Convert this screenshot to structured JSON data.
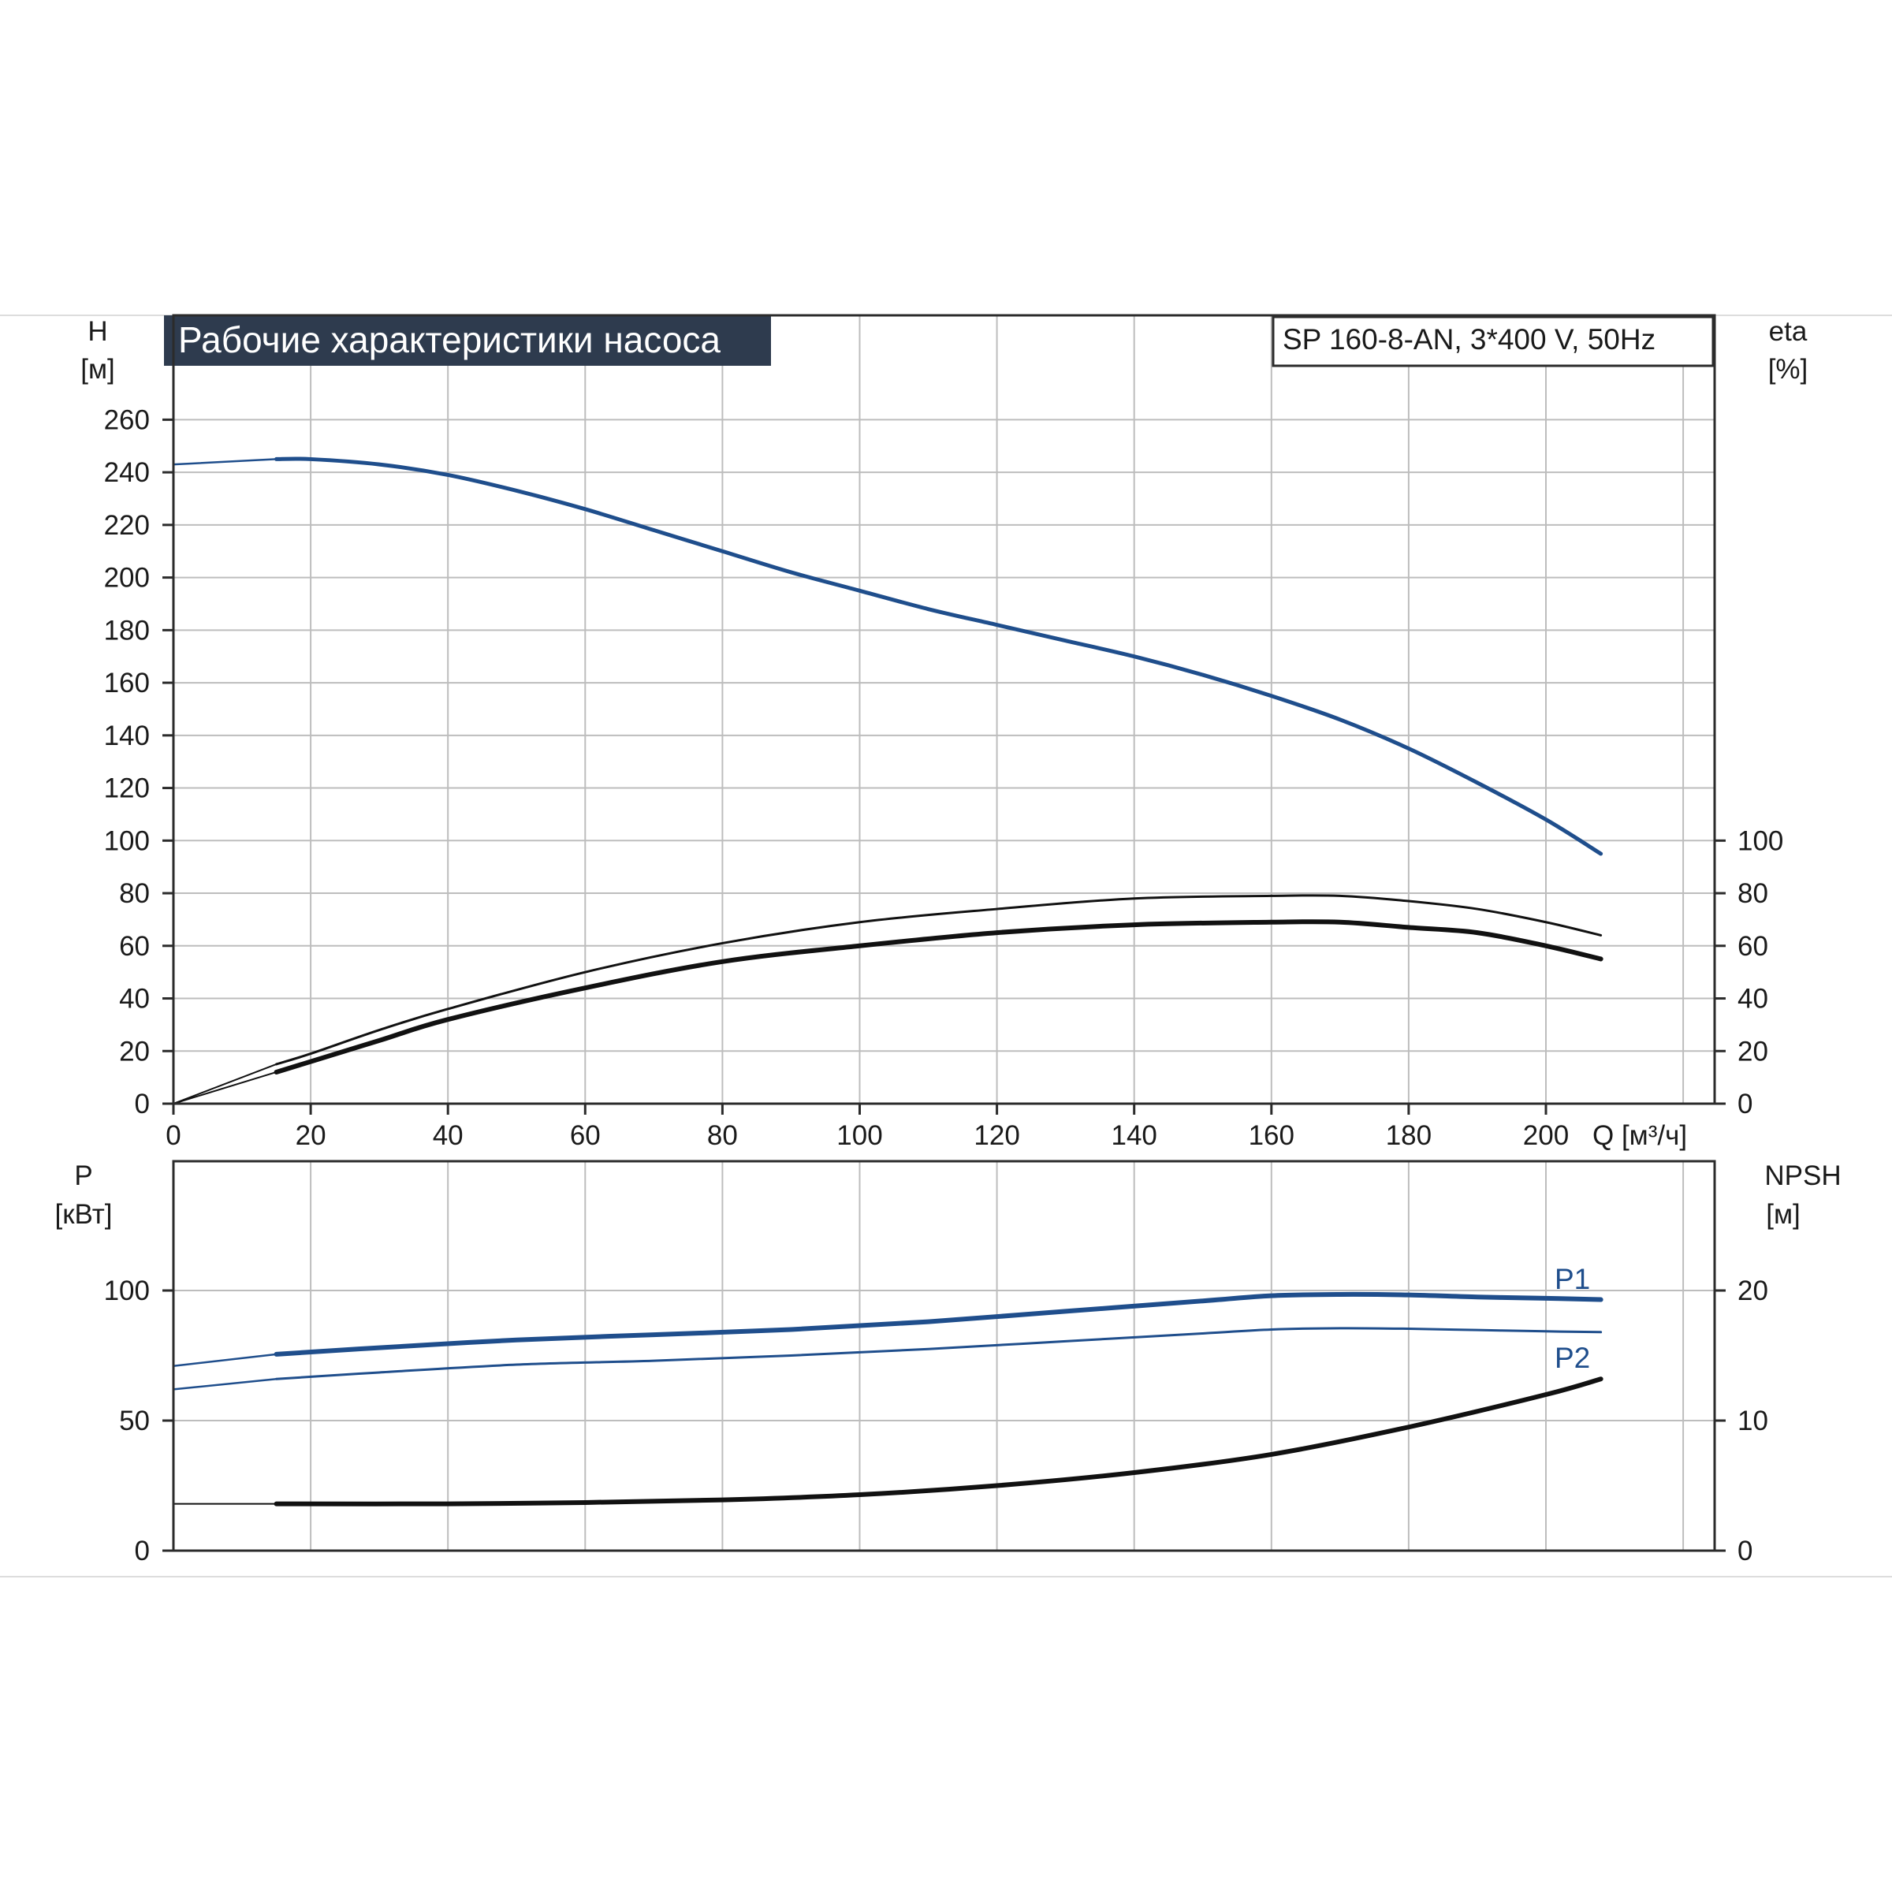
{
  "colors": {
    "blue": "#1f4e8c",
    "black": "#111111",
    "grid": "#bdbdbd",
    "title_bg": "#2e3b4e",
    "title_text": "#ffffff"
  },
  "header": {
    "title": "Рабочие характеристики насоса",
    "model": "SP 160-8-AN, 3*400 V, 50Hz"
  },
  "chart_data": [
    {
      "type": "line",
      "panel": "upper",
      "x_axis": {
        "label": "Q [м³/ч]",
        "range": [
          0,
          230
        ],
        "ticks": [
          0,
          20,
          40,
          60,
          80,
          100,
          120,
          140,
          160,
          180,
          200
        ]
      },
      "y_axis_left": {
        "label_line1": "H",
        "label_line2": "[м]",
        "range": [
          0,
          260
        ],
        "ticks": [
          0,
          20,
          40,
          60,
          80,
          100,
          120,
          140,
          160,
          180,
          200,
          220,
          240,
          260
        ]
      },
      "y_axis_right": {
        "label_line1": "eta",
        "label_line2": "[%]",
        "range": [
          0,
          260
        ],
        "ticks": [
          0,
          20,
          40,
          60,
          80,
          100
        ]
      },
      "grid": true,
      "series": [
        {
          "key": "head",
          "color": "blue",
          "width": 5,
          "x": [
            15,
            20,
            30,
            40,
            50,
            60,
            70,
            80,
            90,
            100,
            110,
            120,
            130,
            140,
            150,
            160,
            170,
            180,
            190,
            200,
            208
          ],
          "y": [
            245,
            245,
            243,
            239,
            233,
            226,
            218,
            210,
            202,
            195,
            188,
            182,
            176,
            170,
            163,
            155,
            146,
            135,
            122,
            108,
            95
          ]
        },
        {
          "key": "head-ext",
          "color": "blue",
          "width": 2.5,
          "x": [
            0,
            15
          ],
          "y": [
            243,
            245
          ]
        },
        {
          "key": "eta-pump",
          "color": "black",
          "width": 3,
          "x": [
            15,
            20,
            30,
            40,
            60,
            80,
            100,
            120,
            140,
            160,
            170,
            180,
            190,
            200,
            208
          ],
          "y": [
            15,
            19,
            28,
            36,
            50,
            61,
            69,
            74,
            78,
            79,
            79,
            77,
            74,
            69,
            64
          ]
        },
        {
          "key": "eta-total",
          "color": "black",
          "width": 6,
          "x": [
            15,
            20,
            30,
            40,
            60,
            80,
            100,
            120,
            140,
            160,
            170,
            180,
            190,
            200,
            208
          ],
          "y": [
            12,
            16,
            24,
            32,
            44,
            54,
            60,
            65,
            68,
            69,
            69,
            67,
            65,
            60,
            55
          ]
        },
        {
          "key": "eta-ext-a",
          "color": "black",
          "width": 2,
          "x": [
            0,
            15
          ],
          "y": [
            0,
            15
          ]
        },
        {
          "key": "eta-ext-b",
          "color": "black",
          "width": 2,
          "x": [
            0,
            15
          ],
          "y": [
            0,
            12
          ]
        }
      ]
    },
    {
      "type": "line",
      "panel": "lower",
      "x_axis": {
        "range": [
          0,
          230
        ]
      },
      "y_axis_left": {
        "label_line1": "P",
        "label_line2": "[кВт]",
        "range": [
          0,
          150
        ],
        "ticks": [
          0,
          50,
          100
        ]
      },
      "y_axis_right": {
        "label_line1": "NPSH",
        "label_line2": "[м]",
        "range": [
          0,
          30
        ],
        "ticks": [
          0,
          10,
          20
        ]
      },
      "grid": true,
      "series": [
        {
          "key": "p1",
          "name": "P1",
          "color": "blue",
          "width": 6,
          "x": [
            15,
            30,
            50,
            70,
            90,
            110,
            130,
            150,
            160,
            170,
            180,
            190,
            200,
            208
          ],
          "y": [
            75.5,
            78,
            81,
            83,
            85,
            88,
            92,
            96,
            98,
            98.5,
            98.3,
            97.5,
            97,
            96.5
          ]
        },
        {
          "key": "p2",
          "name": "P2",
          "color": "blue",
          "width": 3,
          "x": [
            15,
            30,
            50,
            70,
            90,
            110,
            130,
            150,
            160,
            170,
            180,
            190,
            200,
            208
          ],
          "y": [
            66,
            68.5,
            71.5,
            73,
            75,
            77.5,
            80.5,
            83.5,
            85,
            85.5,
            85.3,
            84.8,
            84.3,
            84
          ]
        },
        {
          "key": "p1-ext",
          "color": "blue",
          "width": 2.5,
          "x": [
            0,
            15
          ],
          "y": [
            71,
            75.5
          ]
        },
        {
          "key": "p2-ext",
          "color": "blue",
          "width": 2.5,
          "x": [
            0,
            15
          ],
          "y": [
            62,
            66
          ]
        },
        {
          "key": "npsh",
          "color": "black",
          "width": 6,
          "axis": "right",
          "x": [
            15,
            40,
            60,
            80,
            100,
            120,
            140,
            160,
            180,
            200,
            208
          ],
          "y": [
            3.6,
            3.6,
            3.7,
            3.9,
            4.3,
            5.0,
            6.0,
            7.4,
            9.5,
            12.0,
            13.2
          ]
        },
        {
          "key": "npsh-ext",
          "color": "black",
          "width": 2,
          "axis": "right",
          "x": [
            0,
            15
          ],
          "y": [
            3.6,
            3.6
          ]
        }
      ]
    }
  ]
}
